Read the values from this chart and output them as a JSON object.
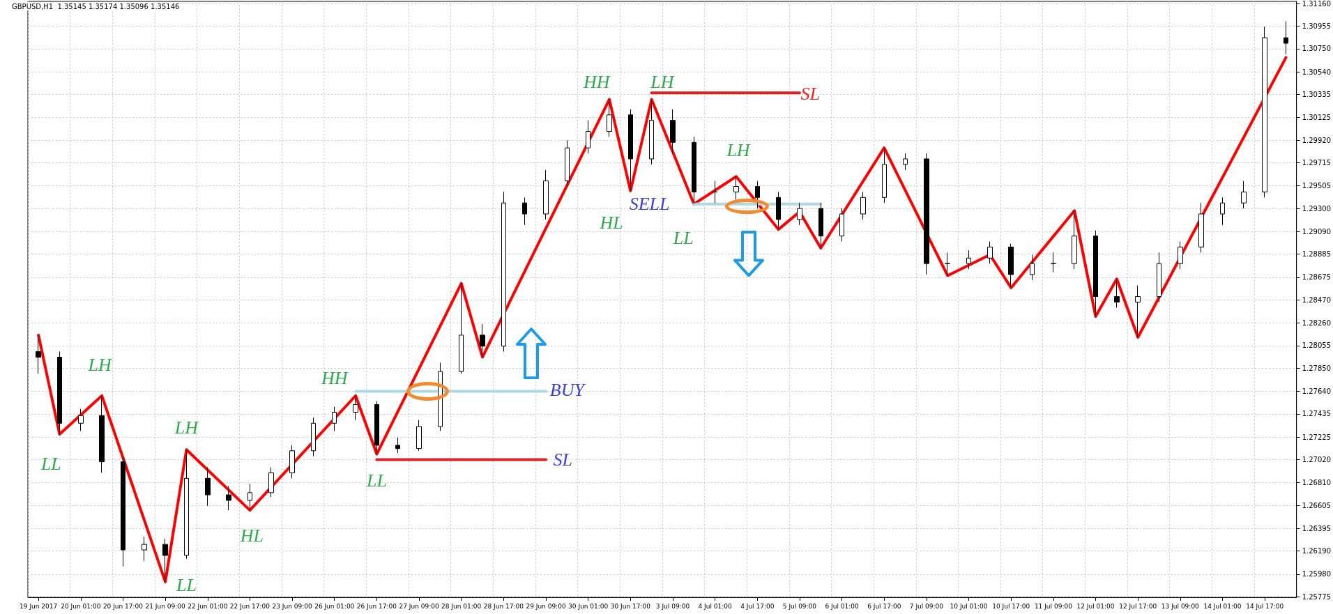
{
  "chart_data": {
    "type": "candlestick",
    "title": "GBPUSD,H1  1.35145 1.35174 1.35096 1.35146",
    "categories": [
      "19 Jun 2017",
      null,
      "20 Jun 01:00",
      null,
      "20 Jun 17:00",
      null,
      "21 Jun 09:00",
      null,
      "22 Jun 01:00",
      null,
      "22 Jun 17:00",
      null,
      "23 Jun 09:00",
      null,
      "26 Jun 01:00",
      null,
      "26 Jun 17:00",
      null,
      "27 Jun 09:00",
      null,
      "28 Jun 01:00",
      null,
      "28 Jun 17:00",
      null,
      "29 Jun 09:00",
      null,
      "30 Jun 01:00",
      null,
      "30 Jun 17:00",
      null,
      "3 Jul 09:00",
      null,
      "4 Jul 01:00",
      null,
      "4 Jul 17:00",
      null,
      "5 Jul 09:00",
      null,
      "6 Jul 01:00",
      null,
      "6 Jul 17:00",
      null,
      "7 Jul 09:00",
      null,
      "10 Jul 01:00",
      null,
      "10 Jul 17:00",
      null,
      "11 Jul 09:00",
      null,
      "12 Jul 01:00",
      null,
      "12 Jul 17:00",
      null,
      "13 Jul 09:00",
      null,
      "14 Jul 01:00",
      null,
      "14 Jul 17:00",
      null
    ],
    "ylim": [
      1.2577,
      1.3118
    ],
    "yticks": [
      {
        "value": 1.3116,
        "label": "1.31160"
      },
      {
        "value": 1.30955,
        "label": "1.30955"
      },
      {
        "value": 1.3075,
        "label": "1.30750"
      },
      {
        "value": 1.3054,
        "label": "1.30540"
      },
      {
        "value": 1.30335,
        "label": "1.30335"
      },
      {
        "value": 1.30125,
        "label": "1.30125"
      },
      {
        "value": 1.2992,
        "label": "1.29920"
      },
      {
        "value": 1.29715,
        "label": "1.29715"
      },
      {
        "value": 1.29505,
        "label": "1.29505"
      },
      {
        "value": 1.293,
        "label": "1.29300"
      },
      {
        "value": 1.2909,
        "label": "1.29090"
      },
      {
        "value": 1.28885,
        "label": "1.28885"
      },
      {
        "value": 1.28675,
        "label": "1.28675"
      },
      {
        "value": 1.2847,
        "label": "1.28470"
      },
      {
        "value": 1.2826,
        "label": "1.28260"
      },
      {
        "value": 1.28055,
        "label": "1.28055"
      },
      {
        "value": 1.2785,
        "label": "1.27850"
      },
      {
        "value": 1.2764,
        "label": "1.27640"
      },
      {
        "value": 1.27435,
        "label": "1.27435"
      },
      {
        "value": 1.27225,
        "label": "1.27225"
      },
      {
        "value": 1.2702,
        "label": "1.27020"
      },
      {
        "value": 1.2681,
        "label": "1.26810"
      },
      {
        "value": 1.26605,
        "label": "1.26605"
      },
      {
        "value": 1.26395,
        "label": "1.26395"
      },
      {
        "value": 1.2619,
        "label": "1.26190"
      },
      {
        "value": 1.2598,
        "label": "1.25980"
      },
      {
        "value": 1.25775,
        "label": "1.25775"
      }
    ],
    "grid": true,
    "marker": "none",
    "line_style": "solid",
    "series": [
      {
        "color": "#000000",
        "ohlc": [
          [
            1.28,
            1.2815,
            1.278,
            1.2795
          ],
          [
            1.2795,
            1.28,
            1.2725,
            1.2735
          ],
          [
            1.2735,
            1.2748,
            1.2728,
            1.2742
          ],
          [
            1.2742,
            1.276,
            1.269,
            1.27
          ],
          [
            1.27,
            1.2705,
            1.2605,
            1.262
          ],
          [
            1.262,
            1.2632,
            1.261,
            1.2625
          ],
          [
            1.2625,
            1.263,
            1.2591,
            1.2615
          ],
          [
            1.2615,
            1.2711,
            1.2612,
            1.2685
          ],
          [
            1.2685,
            1.2695,
            1.266,
            1.267
          ],
          [
            1.267,
            1.2678,
            1.2656,
            1.2665
          ],
          [
            1.2665,
            1.268,
            1.2656,
            1.2672
          ],
          [
            1.2672,
            1.2695,
            1.2668,
            1.269
          ],
          [
            1.269,
            1.2715,
            1.2685,
            1.271
          ],
          [
            1.271,
            1.274,
            1.2705,
            1.2735
          ],
          [
            1.2735,
            1.275,
            1.2728,
            1.2745
          ],
          [
            1.2745,
            1.276,
            1.2738,
            1.2752
          ],
          [
            1.2752,
            1.2755,
            1.2707,
            1.2715
          ],
          [
            1.2715,
            1.2722,
            1.2708,
            1.2712
          ],
          [
            1.2712,
            1.2738,
            1.271,
            1.2732
          ],
          [
            1.2732,
            1.279,
            1.2728,
            1.2782
          ],
          [
            1.2782,
            1.2862,
            1.278,
            1.2815
          ],
          [
            1.2815,
            1.2825,
            1.2795,
            1.2805
          ],
          [
            1.2805,
            1.2945,
            1.28,
            1.2935
          ],
          [
            1.2935,
            1.294,
            1.2915,
            1.2925
          ],
          [
            1.2925,
            1.2965,
            1.292,
            1.2955
          ],
          [
            1.2955,
            1.2992,
            1.295,
            1.2985
          ],
          [
            1.2985,
            1.301,
            1.298,
            1.3
          ],
          [
            1.3,
            1.3029,
            1.2995,
            1.3015
          ],
          [
            1.3015,
            1.302,
            1.2946,
            1.2975
          ],
          [
            1.2975,
            1.3029,
            1.297,
            1.301
          ],
          [
            1.301,
            1.302,
            1.298,
            1.299
          ],
          [
            1.299,
            1.2995,
            1.2934,
            1.2945
          ],
          [
            1.2945,
            1.2955,
            1.2935,
            1.2945
          ],
          [
            1.2945,
            1.2959,
            1.2938,
            1.295
          ],
          [
            1.295,
            1.2955,
            1.293,
            1.294
          ],
          [
            1.294,
            1.2945,
            1.2911,
            1.292
          ],
          [
            1.292,
            1.2935,
            1.2915,
            1.293
          ],
          [
            1.293,
            1.2935,
            1.2894,
            1.2905
          ],
          [
            1.2905,
            1.293,
            1.29,
            1.2925
          ],
          [
            1.2925,
            1.2945,
            1.292,
            1.294
          ],
          [
            1.294,
            1.2985,
            1.2935,
            1.297
          ],
          [
            1.297,
            1.298,
            1.2965,
            1.2975
          ],
          [
            1.2975,
            1.298,
            1.287,
            1.288
          ],
          [
            1.288,
            1.289,
            1.2869,
            1.288
          ],
          [
            1.288,
            1.2892,
            1.2875,
            1.2885
          ],
          [
            1.2885,
            1.29,
            1.288,
            1.2895
          ],
          [
            1.2895,
            1.2898,
            1.2858,
            1.287
          ],
          [
            1.287,
            1.2888,
            1.2865,
            1.288
          ],
          [
            1.288,
            1.289,
            1.2872,
            1.288
          ],
          [
            1.288,
            1.2928,
            1.2875,
            1.2905
          ],
          [
            1.2905,
            1.291,
            1.2832,
            1.285
          ],
          [
            1.285,
            1.2866,
            1.284,
            1.2845
          ],
          [
            1.2845,
            1.286,
            1.2813,
            1.285
          ],
          [
            1.285,
            1.289,
            1.2845,
            1.288
          ],
          [
            1.288,
            1.29,
            1.2875,
            1.2895
          ],
          [
            1.2895,
            1.2935,
            1.289,
            1.2925
          ],
          [
            1.2925,
            1.294,
            1.2915,
            1.2935
          ],
          [
            1.2935,
            1.2955,
            1.293,
            1.2945
          ],
          [
            1.2945,
            1.3095,
            1.294,
            1.3085
          ],
          [
            1.3085,
            1.31,
            1.307,
            1.308
          ]
        ]
      },
      {
        "type": "line",
        "color": "#ff0000",
        "values": [
          1.2815,
          1.2725,
          null,
          1.276,
          null,
          null,
          1.2591,
          1.2711,
          null,
          null,
          1.2656,
          null,
          null,
          null,
          null,
          1.276,
          1.2707,
          null,
          null,
          null,
          1.2862,
          1.2795,
          null,
          null,
          null,
          null,
          null,
          1.3029,
          1.2946,
          1.3029,
          null,
          1.2934,
          null,
          1.2959,
          null,
          1.2911,
          1.2927,
          1.2894,
          null,
          null,
          1.2985,
          null,
          null,
          1.2869,
          null,
          1.2888,
          1.2858,
          null,
          null,
          1.2928,
          1.2832,
          1.2866,
          1.2813,
          null,
          null,
          null,
          null,
          null,
          null,
          1.3067
        ]
      },
      {
        "type": "line",
        "color": "#add8e6",
        "values": [
          null,
          null,
          null,
          null,
          null,
          null,
          null,
          null,
          null,
          null,
          null,
          null,
          null,
          null,
          null,
          1.2764,
          1.2764,
          1.2764,
          1.2764,
          1.2764,
          1.2764,
          1.2764,
          1.2764,
          1.2764,
          1.2764,
          null,
          null,
          null,
          null,
          null,
          null,
          null,
          null,
          null,
          null,
          null,
          null,
          null,
          null,
          null,
          null,
          null,
          null,
          null,
          null,
          null,
          null,
          null,
          null,
          null,
          null,
          null,
          null,
          null,
          null,
          null,
          null,
          null,
          null,
          null
        ]
      },
      {
        "type": "line",
        "color": "#e02020",
        "values": [
          null,
          null,
          null,
          null,
          null,
          null,
          null,
          null,
          null,
          null,
          null,
          null,
          null,
          null,
          null,
          null,
          1.2702,
          1.2702,
          1.2702,
          1.2702,
          1.2702,
          1.2702,
          1.2702,
          1.2702,
          1.2702,
          null,
          null,
          null,
          null,
          null,
          null,
          null,
          null,
          null,
          null,
          null,
          null,
          null,
          null,
          null,
          null,
          null,
          null,
          null,
          null,
          null,
          null,
          null,
          null,
          null,
          null,
          null,
          null,
          null,
          null,
          null,
          null,
          null,
          null,
          null
        ]
      },
      {
        "type": "line",
        "color": "#add8e6",
        "values": [
          null,
          null,
          null,
          null,
          null,
          null,
          null,
          null,
          null,
          null,
          null,
          null,
          null,
          null,
          null,
          null,
          null,
          null,
          null,
          null,
          null,
          null,
          null,
          null,
          null,
          null,
          null,
          null,
          null,
          null,
          null,
          1.2934,
          1.2934,
          1.2934,
          1.2934,
          1.2934,
          1.2934,
          1.2934,
          null,
          null,
          null,
          null,
          null,
          null,
          null,
          null,
          null,
          null,
          null,
          null,
          null,
          null,
          null,
          null,
          null,
          null,
          null,
          null,
          null,
          null
        ]
      },
      {
        "type": "line",
        "color": "#e02020",
        "values": [
          null,
          null,
          null,
          null,
          null,
          null,
          null,
          null,
          null,
          null,
          null,
          null,
          null,
          null,
          null,
          null,
          null,
          null,
          null,
          null,
          null,
          null,
          null,
          null,
          null,
          null,
          null,
          null,
          null,
          1.3035,
          1.3035,
          1.3035,
          1.3035,
          1.3035,
          1.3035,
          1.3035,
          1.3035,
          null,
          null,
          null,
          null,
          null,
          null,
          null,
          null,
          null,
          null,
          null,
          null,
          null,
          null,
          null,
          null,
          null,
          null,
          null,
          null,
          null,
          null,
          null
        ]
      }
    ],
    "annotations": [
      "LL",
      "LH",
      "LH",
      "LL",
      "HL",
      "HH",
      "LL",
      "HH",
      "LH",
      "LH",
      "HL",
      "LL",
      "SELL",
      "BUY",
      "SL",
      "SL"
    ]
  }
}
